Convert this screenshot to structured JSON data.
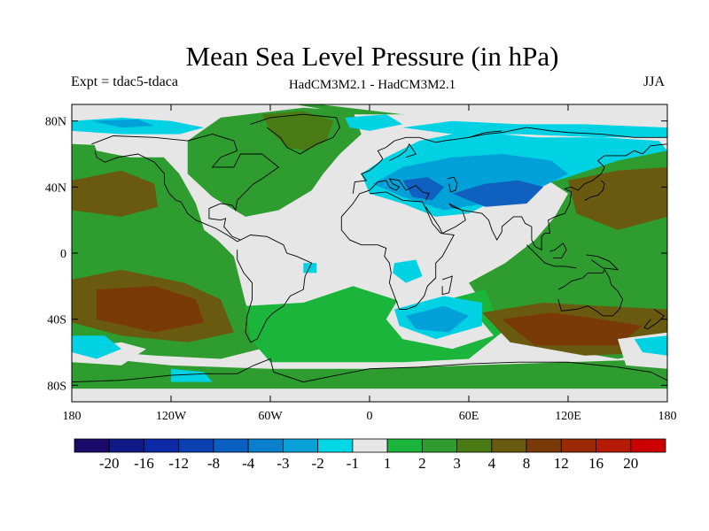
{
  "header": {
    "title": "Mean Sea Level Pressure (in hPa)",
    "experiment": "Expt = tdac5-tdaca",
    "model_diff": "HadCM3M2.1 - HadCM3M2.1",
    "season": "JJA"
  },
  "map": {
    "lon_range": [
      -180,
      180
    ],
    "lat_range": [
      -90,
      90
    ],
    "lat_ticks": [
      {
        "value": 80,
        "label": "80N"
      },
      {
        "value": 40,
        "label": "40N"
      },
      {
        "value": 0,
        "label": "0"
      },
      {
        "value": -40,
        "label": "40S"
      },
      {
        "value": -80,
        "label": "80S"
      }
    ],
    "lon_ticks": [
      {
        "value": -180,
        "label": "180"
      },
      {
        "value": -120,
        "label": "120W"
      },
      {
        "value": -60,
        "label": "60W"
      },
      {
        "value": 0,
        "label": "0"
      },
      {
        "value": 60,
        "label": "60E"
      },
      {
        "value": 120,
        "label": "120E"
      },
      {
        "value": 180,
        "label": "180"
      }
    ],
    "palette": {
      "neutral": "#e6e6e6",
      "pos1": "#1ab53a",
      "pos2": "#2e9c2e",
      "pos3": "#4a7a14",
      "pos4": "#6a5a10",
      "pos5": "#7a3a08",
      "neg1": "#00d2e4",
      "neg2": "#00a0d8",
      "neg3": "#1060c0"
    }
  },
  "colorbar": {
    "colors": [
      "#1a0a6a",
      "#101a86",
      "#0c2aa6",
      "#0a40b0",
      "#0a60c0",
      "#0a80cc",
      "#0aa0d8",
      "#00d8e8",
      "#e6e6e6",
      "#1ab53a",
      "#2e9c2e",
      "#4a7a14",
      "#6a5a10",
      "#7a3a08",
      "#9a2a04",
      "#b41a04",
      "#cc0000"
    ],
    "labels": [
      "-20",
      "-16",
      "-12",
      "-8",
      "-4",
      "-3",
      "-2",
      "-1",
      "1",
      "2",
      "3",
      "4",
      "8",
      "12",
      "16",
      "20"
    ]
  }
}
